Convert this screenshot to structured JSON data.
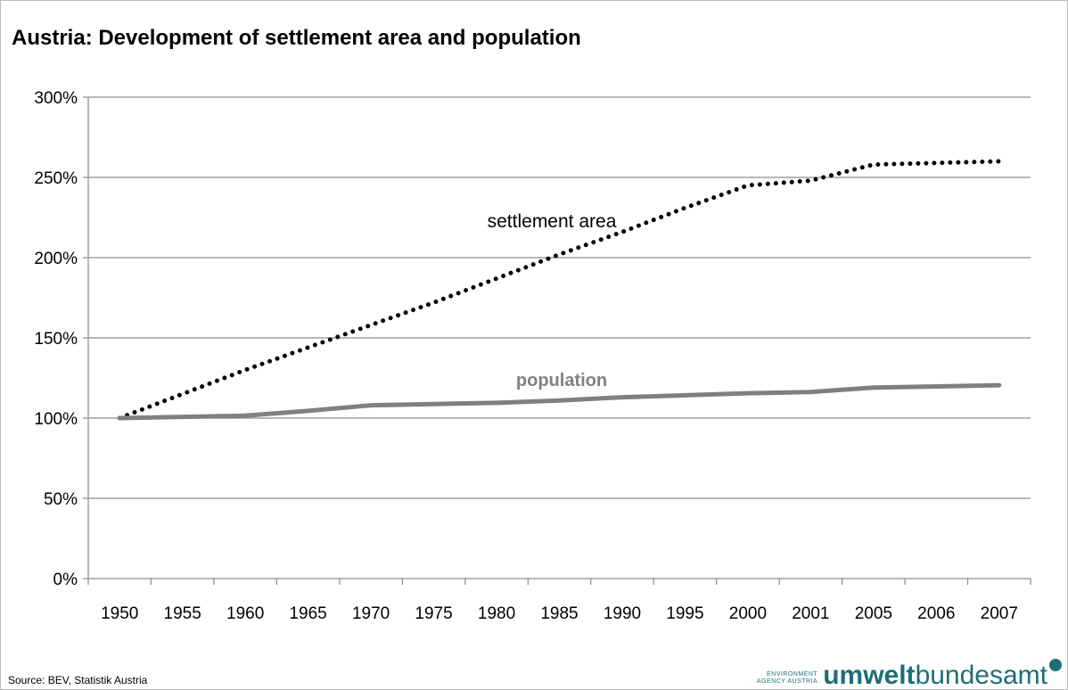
{
  "title": "Austria: Development of settlement area and population",
  "source": "Source: BEV, Statistik  Austria",
  "logo": {
    "org_line1": "ENVIRONMENT",
    "org_line2": "AGENCY AUSTRIA",
    "word_bold": "umwelt",
    "word_regular": "bundesamt"
  },
  "colors": {
    "settlement": "#000000",
    "population": "#808080",
    "grid": "#8c8c8c",
    "logo": "#1e6e76"
  },
  "chart_data": {
    "type": "line",
    "title": "Austria: Development of settlement area and population",
    "categories": [
      "1950",
      "1955",
      "1960",
      "1965",
      "1970",
      "1975",
      "1980",
      "1985",
      "1990",
      "1995",
      "2000",
      "2001",
      "2005",
      "2006",
      "2007"
    ],
    "x_tick_labels": [
      "1950",
      "1955",
      "1960",
      "1965",
      "1970",
      "1975",
      "1980",
      "1985",
      "1990",
      "1995",
      "2000",
      "2001",
      "2005",
      "2006",
      "2007"
    ],
    "y_ticks": [
      0,
      50,
      100,
      150,
      200,
      250,
      300
    ],
    "y_tick_labels": [
      "0%",
      "50%",
      "100%",
      "150%",
      "200%",
      "250%",
      "300%"
    ],
    "ylim": [
      0,
      300
    ],
    "grid": true,
    "xlabel": "",
    "ylabel": "",
    "series": [
      {
        "name": "settlement area",
        "style": "dotted",
        "values": [
          100,
          115,
          130,
          144,
          158,
          172,
          187,
          202,
          216,
          231,
          245,
          248,
          258,
          259,
          260
        ]
      },
      {
        "name": "population",
        "style": "solid",
        "values": [
          100,
          100.8,
          101.5,
          104.5,
          108,
          108.8,
          109.5,
          111,
          113,
          114.2,
          115.5,
          116.2,
          119,
          119.7,
          120.5
        ]
      }
    ]
  }
}
